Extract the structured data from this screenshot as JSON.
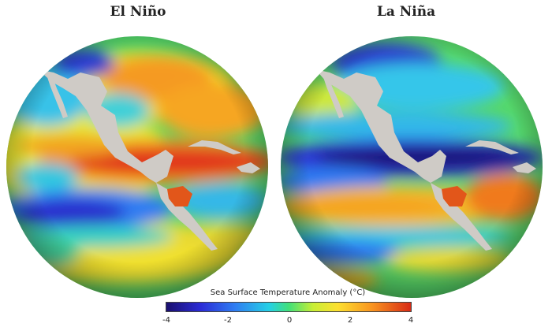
{
  "titles": {
    "left": "El Niño",
    "right": "La Niña"
  },
  "legend": {
    "title": "Sea Surface Temperature Anomaly (°C)",
    "ticks": [
      "-4",
      "-2",
      "0",
      "2",
      "4"
    ],
    "colors": [
      "#1a0f6e",
      "#2b2bd6",
      "#2f7df2",
      "#25d0e6",
      "#40e07a",
      "#c8ee35",
      "#fde030",
      "#f99520",
      "#d82a15"
    ]
  },
  "colors": {
    "land": "#cfcbc6",
    "highlight_country": "#e2561a",
    "deep_ocean_shadow": "#2a1024"
  }
}
